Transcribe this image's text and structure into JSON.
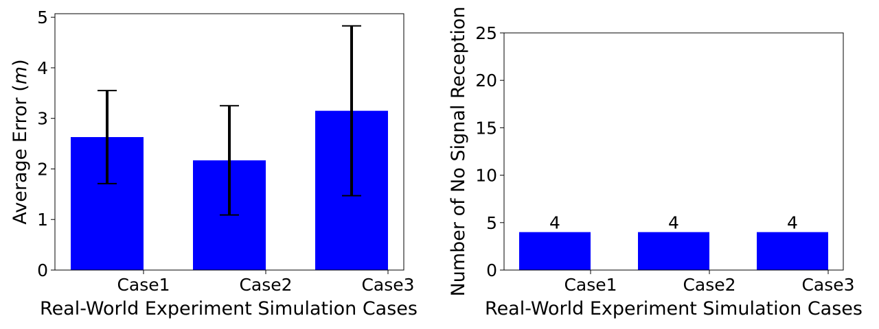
{
  "chart_data": [
    {
      "type": "bar",
      "categories": [
        "Case1",
        "Case2",
        "Case3"
      ],
      "series": [
        {
          "values": [
            2.63,
            2.17,
            3.15
          ],
          "error": [
            0.92,
            1.08,
            1.68
          ]
        }
      ],
      "xlabel": "Real-World Experiment Simulation Cases",
      "ylabel": "Average Error (m)",
      "ylabel_parts": {
        "pre": "Average Error (",
        "unit": "m",
        "post": ")"
      },
      "ylim": [
        0,
        5.07
      ],
      "yticks": [
        0,
        1,
        2,
        3,
        4,
        5
      ],
      "ytick_labels": [
        "0",
        "1",
        "2",
        "3",
        "4",
        "5"
      ],
      "bar_color": "#0000ff",
      "errorbar_color": "#000000",
      "grid": false,
      "legend": false
    },
    {
      "type": "bar",
      "categories": [
        "Case1",
        "Case2",
        "Case3"
      ],
      "series": [
        {
          "values": [
            4,
            4,
            4
          ]
        }
      ],
      "data_labels": [
        "4",
        "4",
        "4"
      ],
      "xlabel": "Real-World Experiment Simulation Cases",
      "ylabel": "Number of No Signal Reception",
      "ylim": [
        0,
        25
      ],
      "yticks": [
        0,
        5,
        10,
        15,
        20,
        25
      ],
      "ytick_labels": [
        "0",
        "5",
        "10",
        "15",
        "20",
        "25"
      ],
      "bar_color": "#0000ff",
      "grid": false,
      "legend": false
    }
  ]
}
